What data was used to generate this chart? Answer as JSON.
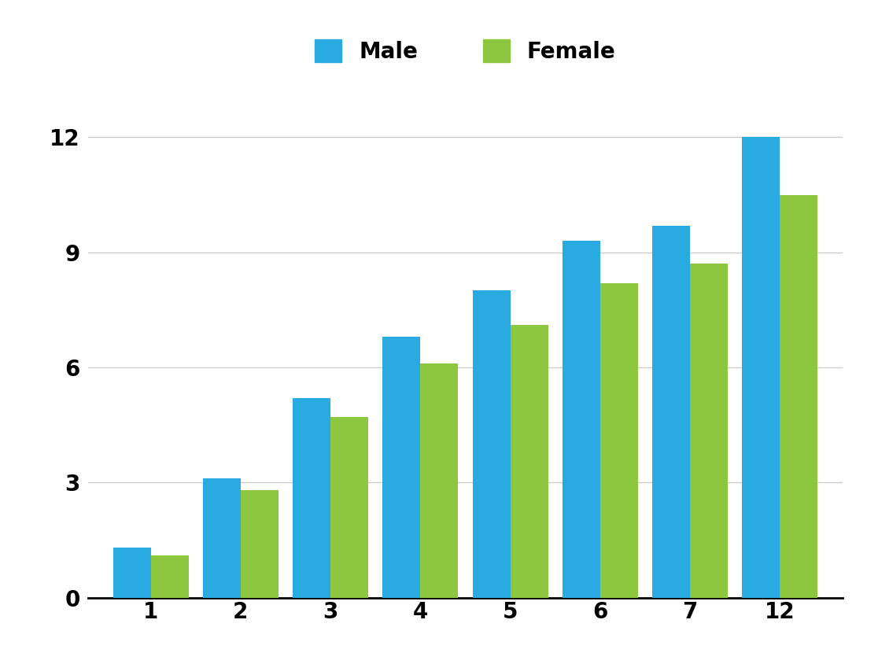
{
  "categories": [
    1,
    2,
    3,
    4,
    5,
    6,
    7,
    12
  ],
  "male_values": [
    1.3,
    3.1,
    5.2,
    6.8,
    8.0,
    9.3,
    9.7,
    12.0
  ],
  "female_values": [
    1.1,
    2.8,
    4.7,
    6.1,
    7.1,
    8.2,
    8.7,
    10.5
  ],
  "male_color": "#29ABE2",
  "female_color": "#8DC63F",
  "background_color": "#FFFFFF",
  "grid_color": "#CCCCCC",
  "yticks": [
    0,
    3,
    6,
    9,
    12
  ],
  "ylim": [
    0,
    13.5
  ],
  "bar_width": 0.42,
  "legend_labels": [
    "Male",
    "Female"
  ],
  "tick_fontsize": 20,
  "legend_fontsize": 20,
  "font_weight": "bold"
}
